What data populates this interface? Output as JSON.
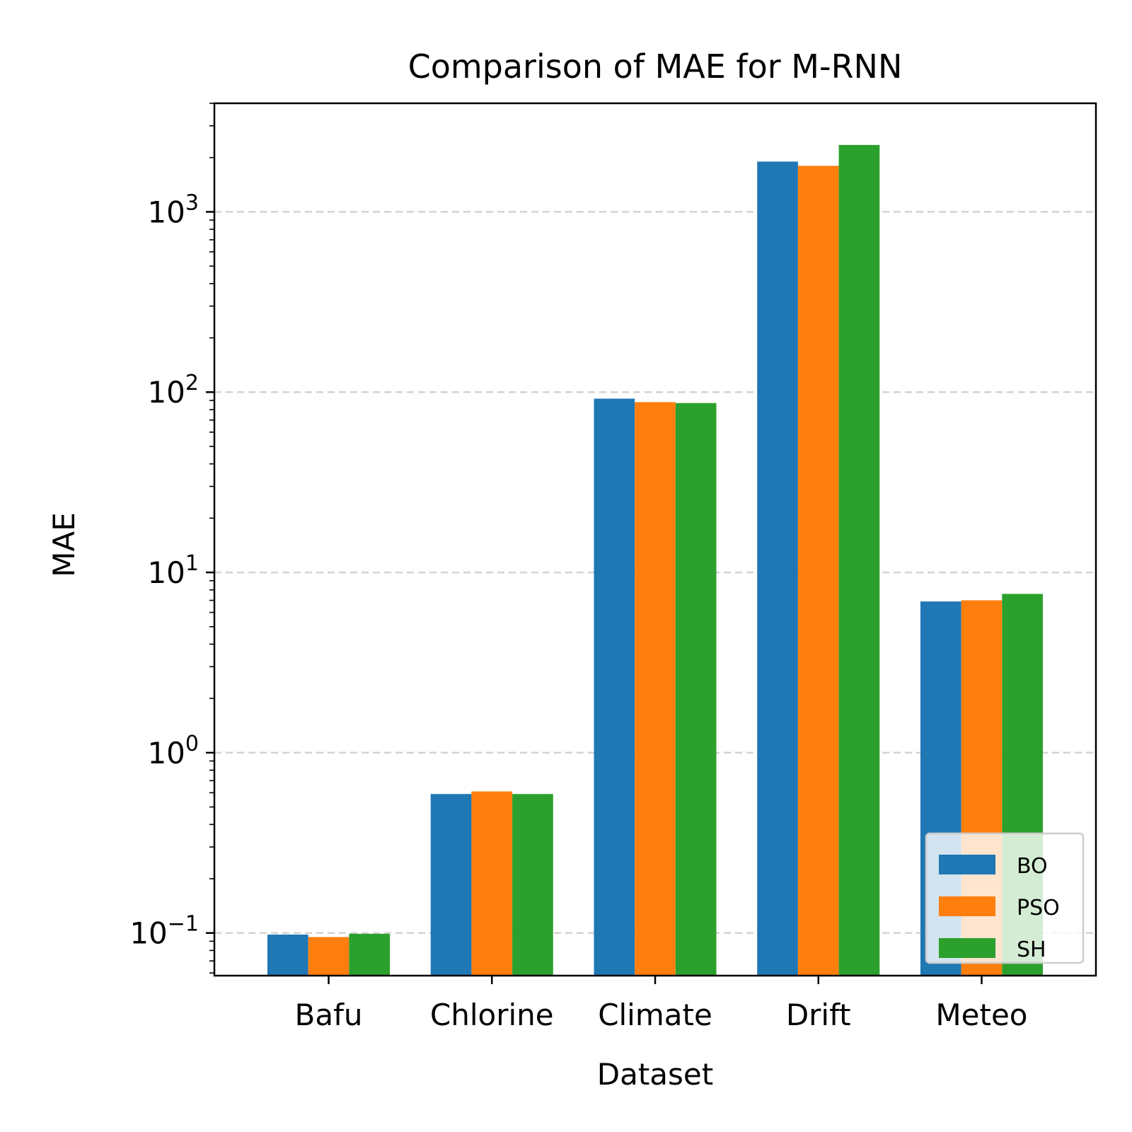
{
  "chart_data": {
    "type": "bar",
    "title": "Comparison of MAE for M-RNN",
    "xlabel": "Dataset",
    "ylabel": "MAE",
    "yscale": "log",
    "ylim": [
      0.058,
      4000
    ],
    "y_major_ticks": [
      {
        "value": 0.1,
        "base": "10",
        "exp": "−1"
      },
      {
        "value": 1,
        "base": "10",
        "exp": "0"
      },
      {
        "value": 10,
        "base": "10",
        "exp": "1"
      },
      {
        "value": 100,
        "base": "10",
        "exp": "2"
      },
      {
        "value": 1000,
        "base": "10",
        "exp": "3"
      }
    ],
    "grid": "y-major dashed",
    "legend_position": "bottom-right",
    "categories": [
      "Bafu",
      "Chlorine",
      "Climate",
      "Drift",
      "Meteo"
    ],
    "series": [
      {
        "name": "BO",
        "color": "#1f77b4",
        "values": [
          0.098,
          0.59,
          92,
          1900,
          6.9
        ]
      },
      {
        "name": "PSO",
        "color": "#ff7f0e",
        "values": [
          0.095,
          0.61,
          88,
          1800,
          7.0
        ]
      },
      {
        "name": "SH",
        "color": "#2ca02c",
        "values": [
          0.099,
          0.59,
          87,
          2350,
          7.6
        ]
      }
    ]
  }
}
